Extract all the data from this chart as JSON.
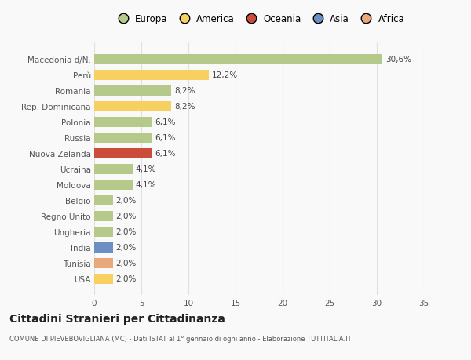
{
  "categories": [
    "Macedonia d/N.",
    "Perù",
    "Romania",
    "Rep. Dominicana",
    "Polonia",
    "Russia",
    "Nuova Zelanda",
    "Ucraina",
    "Moldova",
    "Belgio",
    "Regno Unito",
    "Ungheria",
    "India",
    "Tunisia",
    "USA"
  ],
  "values": [
    30.6,
    12.2,
    8.2,
    8.2,
    6.1,
    6.1,
    6.1,
    4.1,
    4.1,
    2.0,
    2.0,
    2.0,
    2.0,
    2.0,
    2.0
  ],
  "labels": [
    "30,6%",
    "12,2%",
    "8,2%",
    "8,2%",
    "6,1%",
    "6,1%",
    "6,1%",
    "4,1%",
    "4,1%",
    "2,0%",
    "2,0%",
    "2,0%",
    "2,0%",
    "2,0%",
    "2,0%"
  ],
  "colors": [
    "#b5c98a",
    "#f7d060",
    "#b5c98a",
    "#f7d060",
    "#b5c98a",
    "#b5c98a",
    "#cc4c3b",
    "#b5c98a",
    "#b5c98a",
    "#b5c98a",
    "#b5c98a",
    "#b5c98a",
    "#6b8fc2",
    "#e8a87c",
    "#f7d060"
  ],
  "continent_colors": {
    "Europa": "#b5c98a",
    "America": "#f7d060",
    "Oceania": "#cc4c3b",
    "Asia": "#6b8fc2",
    "Africa": "#e8a87c"
  },
  "legend_labels": [
    "Europa",
    "America",
    "Oceania",
    "Asia",
    "Africa"
  ],
  "xlim": [
    0,
    35
  ],
  "xticks": [
    0,
    5,
    10,
    15,
    20,
    25,
    30,
    35
  ],
  "title": "Cittadini Stranieri per Cittadinanza",
  "subtitle": "COMUNE DI PIEVEBOVIGLIANA (MC) - Dati ISTAT al 1° gennaio di ogni anno - Elaborazione TUTTITALIA.IT",
  "background_color": "#f9f9f9",
  "bar_height": 0.65,
  "grid_color": "#e0e0e0",
  "label_fontsize": 7.5,
  "tick_fontsize": 7.5,
  "title_fontsize": 10,
  "subtitle_fontsize": 6.0,
  "legend_fontsize": 8.5
}
